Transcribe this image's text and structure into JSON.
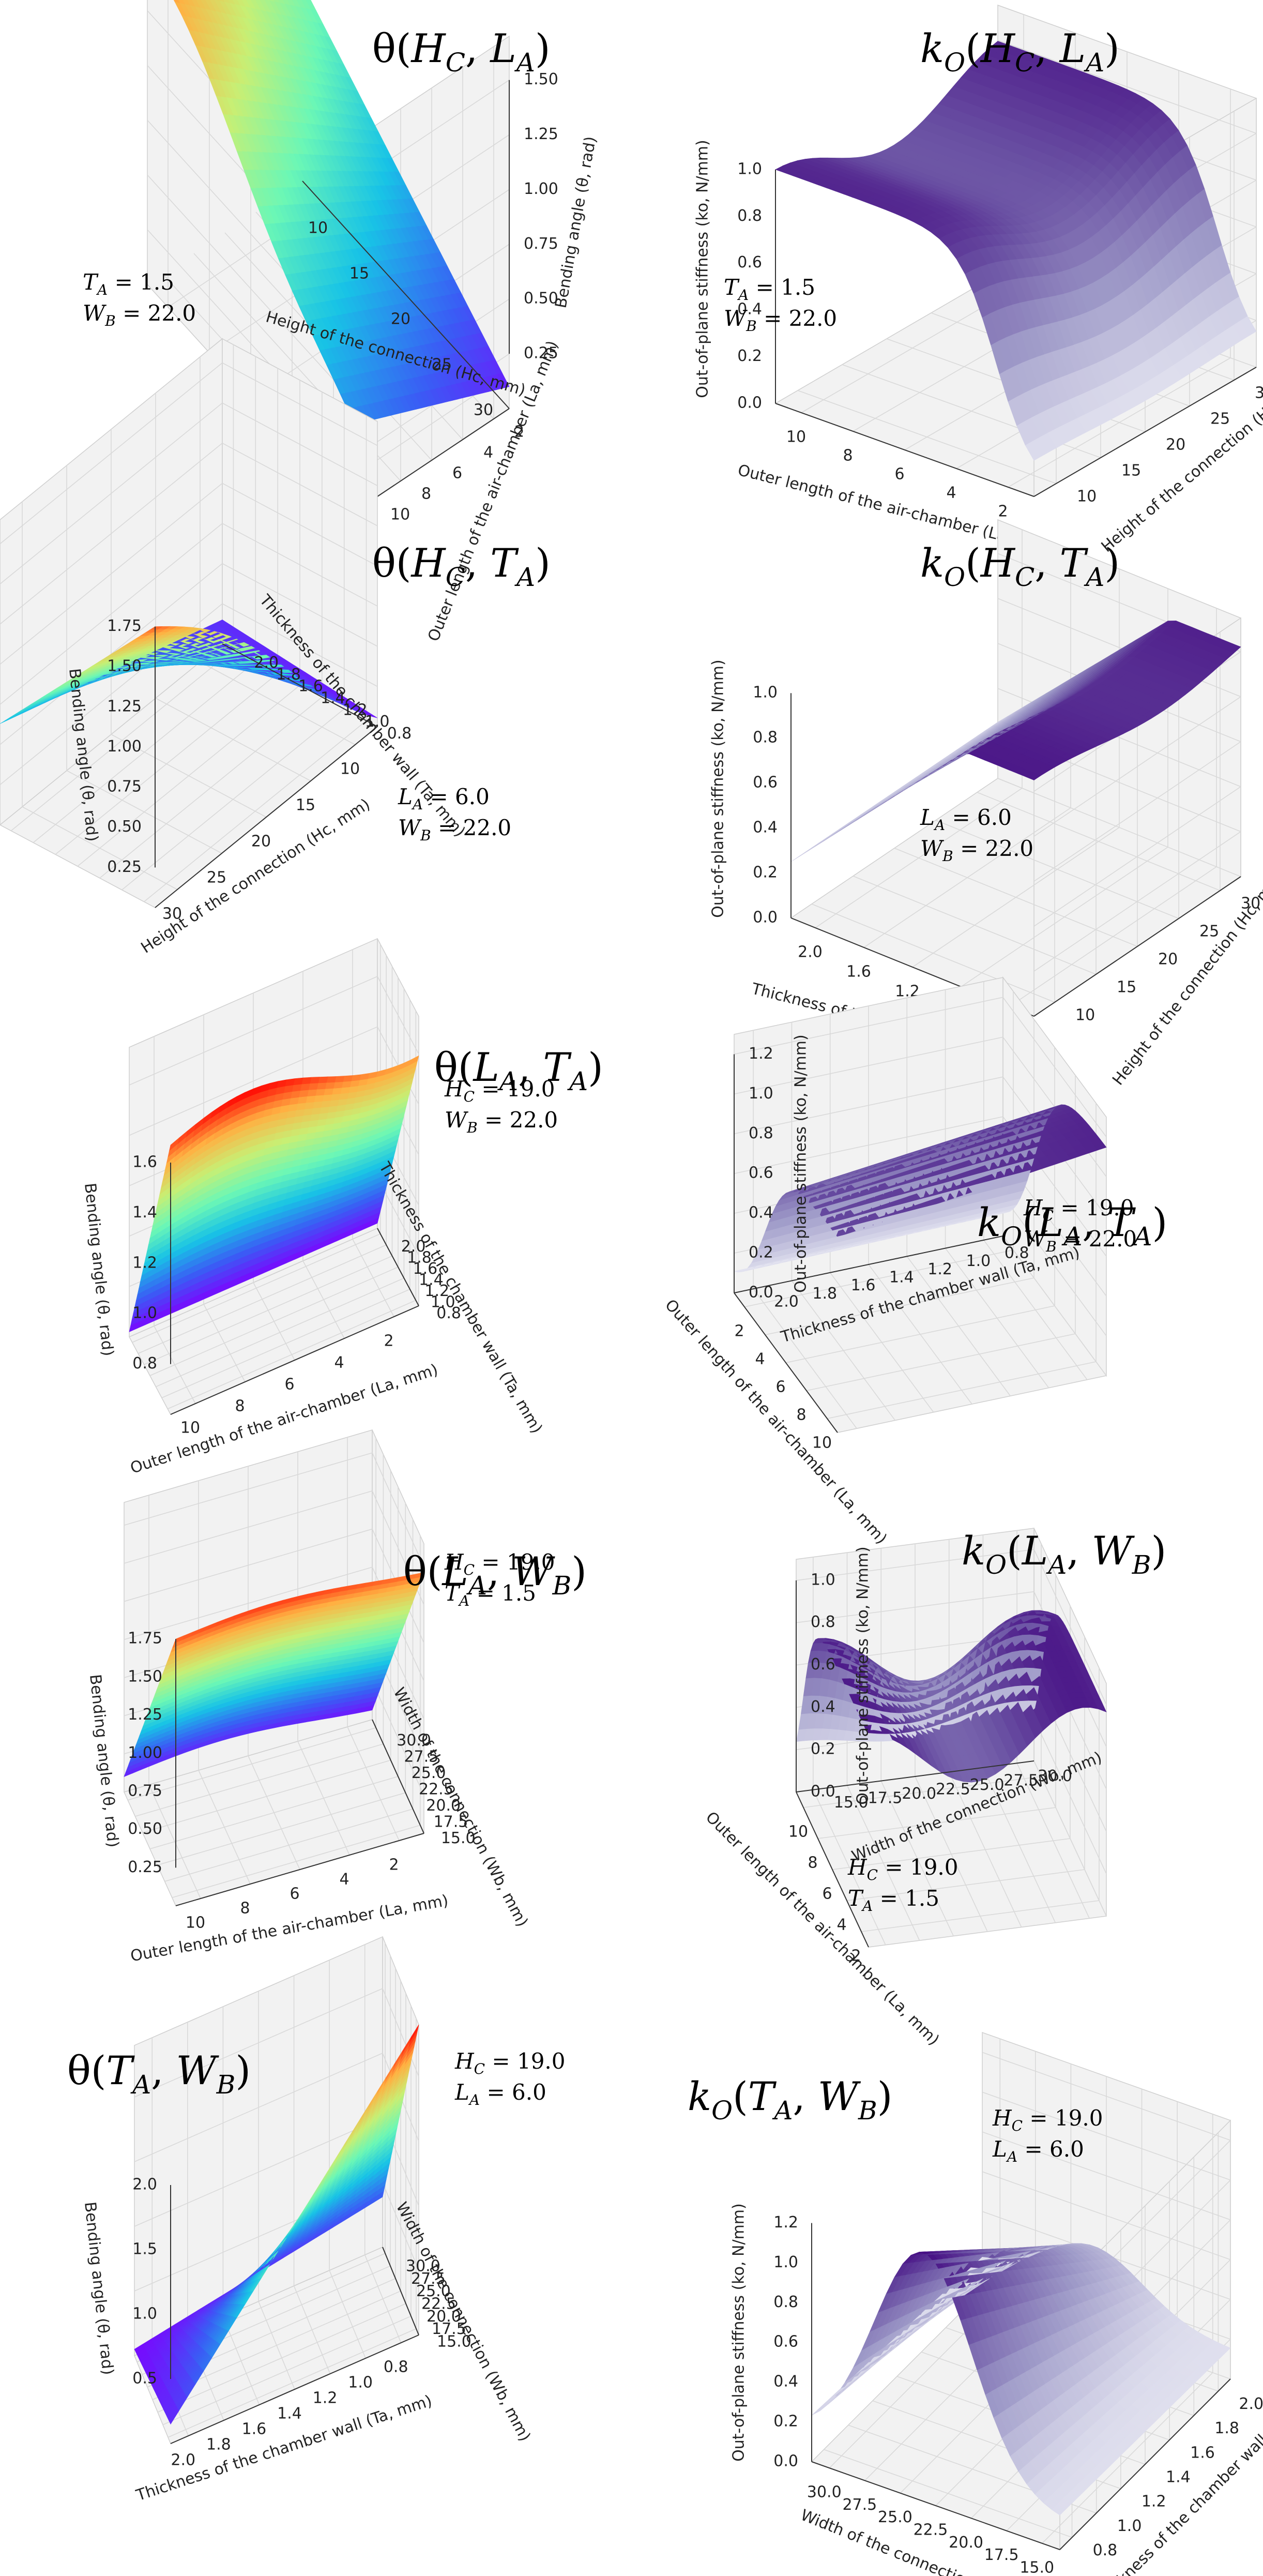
{
  "colors": {
    "theta_colormap": "rainbow",
    "theta_stops": [
      "#7f00ff",
      "#3a5cf5",
      "#18c3e6",
      "#6bf7b6",
      "#c8ef74",
      "#ffb042",
      "#ff0000"
    ],
    "k_colormap": "Purples",
    "k_stops": [
      "#fcfbfd",
      "#dadaeb",
      "#9e9ac8",
      "#6a51a3",
      "#3f007d"
    ],
    "pane": "#f2f2f2",
    "grid": "#d9d9d9"
  },
  "chart_data": [
    {
      "id": "p1",
      "type": "surface3d",
      "title": {
        "base": "θ(",
        "v1": "H",
        "s1": "C",
        "v2": "L",
        "s2": "A",
        "close": ")"
      },
      "annotation": [
        {
          "var": "T",
          "sub": "A",
          "val": " = 1.5"
        },
        {
          "var": "W",
          "sub": "B",
          "val": " = 22.0"
        }
      ],
      "xlabel": "Height of the connection (Hc, mm)",
      "ylabel": "Outer length of the air-chamber (La, mm)",
      "zlabel": "Bending angle (θ, rad)",
      "xticks": [
        "10",
        "15",
        "20",
        "25",
        "30"
      ],
      "yticks": [
        "2",
        "4",
        "6",
        "8",
        "10"
      ],
      "zticks": [
        "0.25",
        "0.50",
        "0.75",
        "1.00",
        "1.25",
        "1.50"
      ],
      "xlim": [
        8,
        32
      ],
      "ylim": [
        1,
        11
      ],
      "zlim": [
        0,
        1.7
      ],
      "grid": true,
      "corners_z": {
        "x_min_y_min": 0.5,
        "x_max_y_min": 0.1,
        "x_min_y_max": 1.3,
        "x_max_y_max": 0.3
      },
      "peak": {
        "x": 10,
        "y": 10,
        "z": 1.65
      },
      "shape": "peak at low Hc and high La; drops to about 0.1 rad at high Hc and low La"
    },
    {
      "id": "p2",
      "type": "surface3d",
      "title": {
        "base": "k",
        "bsub": "O",
        "open": "(",
        "v1": "H",
        "s1": "C",
        "v2": "L",
        "s2": "A",
        "close": ")"
      },
      "annotation": [
        {
          "var": "T",
          "sub": "A",
          "val": " = 1.5"
        },
        {
          "var": "W",
          "sub": "B",
          "val": " = 22.0"
        }
      ],
      "xlabel": "Outer length of the air-chamber (La, mm)",
      "ylabel": "Height of the connection (Hc, mm)",
      "zlabel": "Out-of-plane stiffness (ko, N/mm)",
      "xticks": [
        "10",
        "8",
        "6",
        "4",
        "2"
      ],
      "yticks": [
        "10",
        "15",
        "20",
        "25",
        "30"
      ],
      "zticks": [
        "0.0",
        "0.2",
        "0.4",
        "0.6",
        "0.8",
        "1.0"
      ],
      "xlim": [
        1,
        11
      ],
      "ylim": [
        8,
        32
      ],
      "zlim": [
        0,
        1.15
      ],
      "grid": true,
      "shape": "plateau near 1.0 N/mm over most of the domain with a sharp fall to 0 at low La"
    },
    {
      "id": "p3",
      "type": "surface3d",
      "title": {
        "base": "θ(",
        "v1": "H",
        "s1": "C",
        "v2": "T",
        "s2": "A",
        "close": ")"
      },
      "annotation": [
        {
          "var": "L",
          "sub": "A",
          "val": " = 6.0"
        },
        {
          "var": "W",
          "sub": "B",
          "val": " = 22.0"
        }
      ],
      "xlabel": "Height of the connection (Hc, mm)",
      "ylabel": "Thickness of the chamber wall (Ta, mm)",
      "zlabel": "Bending angle (θ, rad)",
      "xticks": [
        "30",
        "25",
        "20",
        "15",
        "10"
      ],
      "yticks": [
        "0.8",
        "1.0",
        "1.2",
        "1.4",
        "1.6",
        "1.8",
        "2.0"
      ],
      "zticks": [
        "0.25",
        "0.50",
        "0.75",
        "1.00",
        "1.25",
        "1.50",
        "1.75"
      ],
      "xlim": [
        8,
        32
      ],
      "ylim": [
        0.7,
        2.1
      ],
      "zlim": [
        0,
        1.9
      ],
      "grid": true,
      "shape": "peak about 1.8 rad at low Hc and thin wall; decreasing with Hc and wall thickness"
    },
    {
      "id": "p4",
      "type": "surface3d",
      "title": {
        "base": "k",
        "bsub": "O",
        "open": "(",
        "v1": "H",
        "s1": "C",
        "v2": "T",
        "s2": "A",
        "close": ")"
      },
      "annotation": [
        {
          "var": "L",
          "sub": "A",
          "val": " = 6.0"
        },
        {
          "var": "W",
          "sub": "B",
          "val": " = 22.0"
        }
      ],
      "xlabel": "Thickness of the chamber wall (Ta, mm)",
      "ylabel": "Height of the connection (Hc, mm)",
      "zlabel": "Out-of-plane stiffness (ko, N/mm)",
      "xticks": [
        "2.0",
        "1.6",
        "1.2",
        "1.0",
        "0.8"
      ],
      "yticks": [
        "10",
        "15",
        "20",
        "25",
        "30"
      ],
      "zticks": [
        "0.0",
        "0.2",
        "0.4",
        "0.6",
        "0.8",
        "1.0"
      ],
      "xlim": [
        0.7,
        2.1
      ],
      "ylim": [
        8,
        32
      ],
      "zlim": [
        0,
        1.15
      ],
      "grid": true,
      "shape": "rising from about 0.3 N/mm to a plateau near 1.05 N/mm as wall thickness decreases"
    },
    {
      "id": "p5",
      "type": "surface3d",
      "title": {
        "base": "θ(",
        "v1": "L",
        "s1": "A",
        "v2": "T",
        "s2": "A",
        "close": ")"
      },
      "annotation": [
        {
          "var": "H",
          "sub": "C",
          "val": " = 19.0"
        },
        {
          "var": "W",
          "sub": "B",
          "val": " = 22.0"
        }
      ],
      "xlabel": "Outer length of the air-chamber (La, mm)",
      "ylabel": "Thickness of the chamber wall (Ta, mm)",
      "zlabel": "Bending angle (θ, rad)",
      "xticks": [
        "10",
        "8",
        "6",
        "4",
        "2"
      ],
      "yticks": [
        "0.8",
        "1.0",
        "1.2",
        "1.4",
        "1.6",
        "1.8",
        "2.0"
      ],
      "zticks": [
        "0.8",
        "1.0",
        "1.2",
        "1.4",
        "1.6"
      ],
      "xlim": [
        1,
        11
      ],
      "ylim": [
        0.7,
        2.1
      ],
      "zlim": [
        0.6,
        1.75
      ],
      "grid": true,
      "shape": "about 1.6 rad for thin walls falling to about 0.6 rad for 2.0 mm walls; weak dependence on La"
    },
    {
      "id": "p6",
      "type": "surface3d",
      "title": {
        "base": "k",
        "bsub": "O",
        "open": "(",
        "v1": "L",
        "s1": "A",
        "v2": "T",
        "s2": "A",
        "close": ")"
      },
      "annotation": [
        {
          "var": "H",
          "sub": "C",
          "val": " = 19.0"
        },
        {
          "var": "W",
          "sub": "B",
          "val": " = 22.0"
        }
      ],
      "xlabel": "Outer length of the air-chamber (La, mm)",
      "ylabel": "Thickness of the chamber wall (Ta, mm)",
      "zlabel": "Out-of-plane stiffness (ko, N/mm)",
      "xticks": [
        "10",
        "8",
        "6",
        "4",
        "2"
      ],
      "yticks": [
        "2.0",
        "1.8",
        "1.6",
        "1.4",
        "1.2",
        "1.0",
        "0.8"
      ],
      "zticks": [
        "0.0",
        "0.2",
        "0.4",
        "0.6",
        "0.8",
        "1.0",
        "1.2"
      ],
      "xlim": [
        1,
        11
      ],
      "ylim": [
        0.7,
        2.1
      ],
      "zlim": [
        0,
        1.3
      ],
      "grid": true,
      "shape": "high plateau near 1.1 N/mm for thin walls and long chambers; drops to 0 at low La"
    },
    {
      "id": "p7",
      "type": "surface3d",
      "title": {
        "base": "θ(",
        "v1": "L",
        "s1": "A",
        "v2": "W",
        "s2": "B",
        "close": ")"
      },
      "annotation": [
        {
          "var": "H",
          "sub": "C",
          "val": " = 19.0"
        },
        {
          "var": "T",
          "sub": "A",
          "val": " = 1.5"
        }
      ],
      "xlabel": "Outer length of the air-chamber (La, mm)",
      "ylabel": "Width of the connection (Wb, mm)",
      "zlabel": "Bending angle (θ, rad)",
      "xticks": [
        "10",
        "8",
        "6",
        "4",
        "2"
      ],
      "yticks": [
        "15.0",
        "17.5",
        "20.0",
        "22.5",
        "25.0",
        "27.5",
        "30.0"
      ],
      "zticks": [
        "0.25",
        "0.50",
        "0.75",
        "1.00",
        "1.25",
        "1.50",
        "1.75"
      ],
      "xlim": [
        1,
        11
      ],
      "ylim": [
        14,
        31
      ],
      "zlim": [
        0,
        1.9
      ],
      "grid": true,
      "shape": "about 1.75 rad at narrow connection falling to about 0.1 rad at 30 mm width"
    },
    {
      "id": "p8",
      "type": "surface3d",
      "title": {
        "base": "k",
        "bsub": "O",
        "open": "(",
        "v1": "L",
        "s1": "A",
        "v2": "W",
        "s2": "B",
        "close": ")"
      },
      "annotation": [
        {
          "var": "H",
          "sub": "C",
          "val": " = 19.0"
        },
        {
          "var": "T",
          "sub": "A",
          "val": " = 1.5"
        }
      ],
      "xlabel": "Outer length of the air-chamber (La, mm)",
      "ylabel": "Width of the connection (Wb, mm)",
      "zlabel": "Out-of-plane stiffness (ko, N/mm)",
      "xticks": [
        "2",
        "4",
        "6",
        "8",
        "10"
      ],
      "yticks": [
        "15.0",
        "17.5",
        "20.0",
        "22.5",
        "25.0",
        "27.5",
        "30.0"
      ],
      "zticks": [
        "0.0",
        "0.2",
        "0.4",
        "0.6",
        "0.8",
        "1.0"
      ],
      "xlim": [
        1,
        11
      ],
      "ylim": [
        14,
        31
      ],
      "zlim": [
        0,
        1.1
      ],
      "grid": true,
      "shape": "ridge near 1.0 N/mm with a dip in the middle and a sharp drop at low La"
    },
    {
      "id": "p9",
      "type": "surface3d",
      "title": {
        "base": "θ(",
        "v1": "T",
        "s1": "A",
        "v2": "W",
        "s2": "B",
        "close": ")"
      },
      "annotation": [
        {
          "var": "H",
          "sub": "C",
          "val": " = 19.0"
        },
        {
          "var": "L",
          "sub": "A",
          "val": " = 6.0"
        }
      ],
      "xlabel": "Thickness of the chamber wall (Ta, mm)",
      "ylabel": "Width of the connection (Wb, mm)",
      "zlabel": "Bending angle (θ, rad)",
      "xticks": [
        "2.0",
        "1.8",
        "1.6",
        "1.4",
        "1.2",
        "1.0",
        "0.8"
      ],
      "yticks": [
        "15.0",
        "17.5",
        "20.0",
        "22.5",
        "25.0",
        "27.5",
        "30.0"
      ],
      "zticks": [
        "0.5",
        "1.0",
        "1.5",
        "2.0"
      ],
      "xlim": [
        0.7,
        2.1
      ],
      "ylim": [
        14,
        31
      ],
      "zlim": [
        0,
        2.4
      ],
      "grid": true,
      "shape": "planar surface rising to about 2.3 rad at thin wall and narrow connection; near 0 at thick wall and wide connection"
    },
    {
      "id": "p10",
      "type": "surface3d",
      "title": {
        "base": "k",
        "bsub": "O",
        "open": "(",
        "v1": "T",
        "s1": "A",
        "v2": "W",
        "s2": "B",
        "close": ")"
      },
      "annotation": [
        {
          "var": "H",
          "sub": "C",
          "val": " = 19.0"
        },
        {
          "var": "L",
          "sub": "A",
          "val": " = 6.0"
        }
      ],
      "xlabel": "Width of the connection (Wb, mm)",
      "ylabel": "Thickness of the chamber wall (Ta, mm)",
      "zlabel": "Out-of-plane stiffness (ko, N/mm)",
      "xticks": [
        "30.0",
        "27.5",
        "25.0",
        "22.5",
        "20.0",
        "17.5",
        "15.0"
      ],
      "yticks": [
        "0.8",
        "1.0",
        "1.2",
        "1.4",
        "1.6",
        "1.8",
        "2.0"
      ],
      "zticks": [
        "0.0",
        "0.2",
        "0.4",
        "0.6",
        "0.8",
        "1.0",
        "1.2"
      ],
      "xlim": [
        14,
        31
      ],
      "ylim": [
        0.7,
        2.1
      ],
      "zlim": [
        0,
        1.3
      ],
      "grid": true,
      "shape": "crest about 1.2 N/mm near 22 mm width decreasing towards thick walls"
    }
  ]
}
